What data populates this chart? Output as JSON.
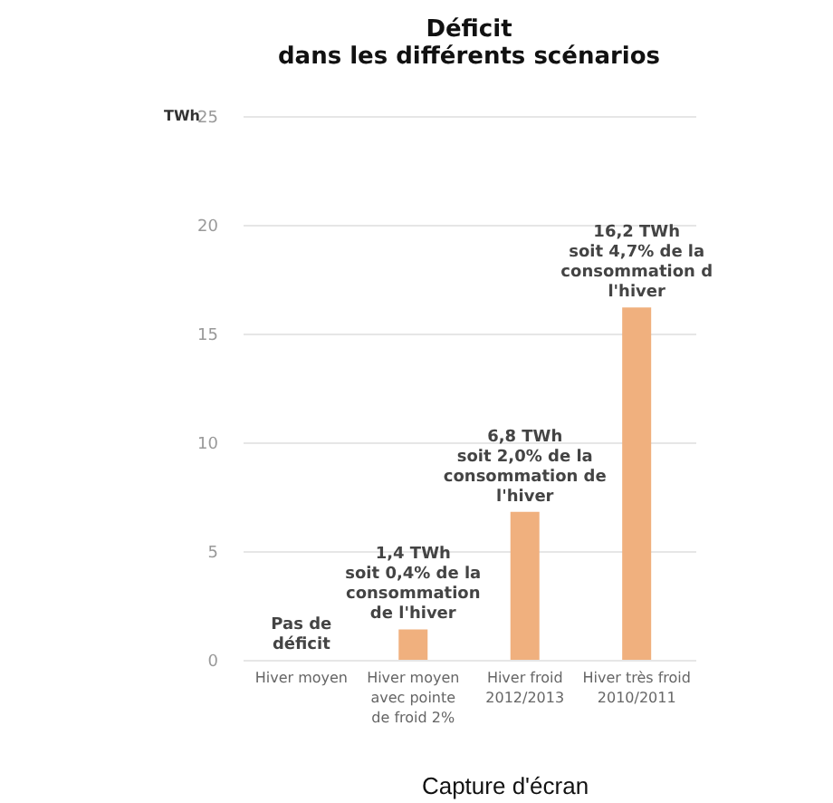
{
  "chart_data": {
    "type": "bar",
    "title": "Déficit\ndans les différents scénarios",
    "ylabel": "TWh",
    "categories": [
      "Hiver moyen",
      "Hiver moyen\navec pointe\nde froid 2%",
      "Hiver froid\n2012/2013",
      "Hiver très froid\n2010/2011"
    ],
    "values": [
      0,
      1.4,
      6.8,
      16.2
    ],
    "value_labels": [
      "Pas de\ndéficit",
      "1,4 TWh\nsoit 0,4% de la\nconsommation\nde l'hiver",
      "6,8 TWh\nsoit 2,0% de la\nconsommation de\nl'hiver",
      "16,2 TWh\nsoit 4,7% de la\nconsommation d\nl'hiver"
    ],
    "color": "#f0b07e",
    "ylim": [
      0,
      25
    ],
    "yticks": [
      0,
      5,
      10,
      15,
      20,
      25
    ],
    "grid": "y",
    "annotations": [
      "Capture d'écran"
    ]
  }
}
